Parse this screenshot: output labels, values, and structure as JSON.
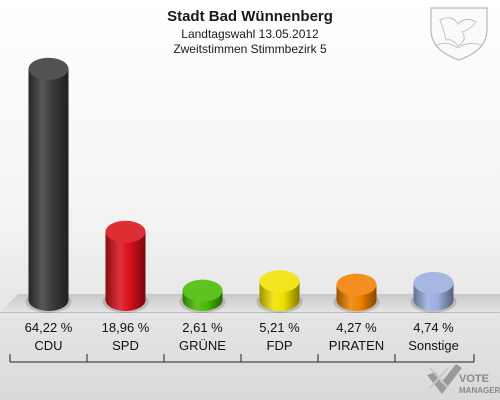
{
  "header": {
    "title": "Stadt Bad Wünnenberg",
    "subtitle1": "Landtagswahl 13.05.2012",
    "subtitle2": "Zweitstimmen Stimmbezirk 5"
  },
  "logo": {
    "line1": "VOTE",
    "line2": "MANAGER"
  },
  "chart_data": {
    "type": "bar",
    "categories": [
      "CDU",
      "SPD",
      "GRÜNE",
      "FDP",
      "PIRATEN",
      "Sonstige"
    ],
    "values": [
      64.22,
      18.96,
      2.61,
      5.21,
      4.27,
      4.74
    ],
    "value_labels": [
      "64,22 %",
      "18,96 %",
      "2,61 %",
      "5,21 %",
      "4,27 %",
      "4,74 %"
    ],
    "colors": [
      "#3a3a3a",
      "#d8101a",
      "#46bb00",
      "#f0e000",
      "#f08000",
      "#9aaedd"
    ],
    "ylim": [
      0,
      70
    ],
    "grid": false,
    "legend": "none"
  }
}
